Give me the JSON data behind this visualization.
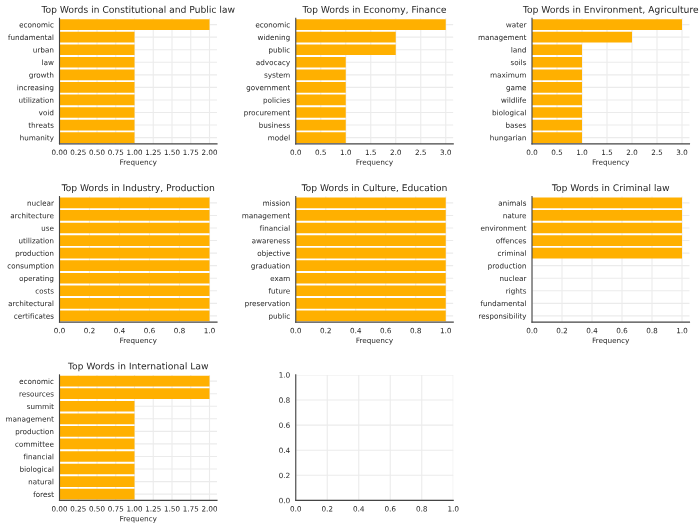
{
  "chart_data": [
    {
      "type": "bar",
      "orientation": "horizontal",
      "title": "Top Words in Constitutional and Public law",
      "xlabel": "Frequency",
      "categories": [
        "economic",
        "fundamental",
        "urban",
        "law",
        "growth",
        "increasing",
        "utilization",
        "void",
        "threats",
        "humanity"
      ],
      "values": [
        2,
        1,
        1,
        1,
        1,
        1,
        1,
        1,
        1,
        1
      ],
      "color": "#ffb000",
      "xlim": [
        0,
        2.1
      ],
      "xticks": [
        {
          "value": 0,
          "label": "0.00"
        },
        {
          "value": 0.25,
          "label": "0.25"
        },
        {
          "value": 0.5,
          "label": "0.50"
        },
        {
          "value": 0.75,
          "label": "0.75"
        },
        {
          "value": 1,
          "label": "1.00"
        },
        {
          "value": 1.25,
          "label": "1.25"
        },
        {
          "value": 1.5,
          "label": "1.50"
        },
        {
          "value": 1.75,
          "label": "1.75"
        },
        {
          "value": 2,
          "label": "2.00"
        }
      ],
      "grid": true
    },
    {
      "type": "bar",
      "orientation": "horizontal",
      "title": "Top Words in Economy, Finance",
      "xlabel": "Frequency",
      "categories": [
        "economic",
        "widening",
        "public",
        "advocacy",
        "system",
        "government",
        "policies",
        "procurement",
        "business",
        "model"
      ],
      "values": [
        3,
        2,
        2,
        1,
        1,
        1,
        1,
        1,
        1,
        1
      ],
      "color": "#ffb000",
      "xlim": [
        0,
        3.15
      ],
      "xticks": [
        {
          "value": 0,
          "label": "0.0"
        },
        {
          "value": 0.5,
          "label": "0.5"
        },
        {
          "value": 1,
          "label": "1.0"
        },
        {
          "value": 1.5,
          "label": "1.5"
        },
        {
          "value": 2,
          "label": "2.0"
        },
        {
          "value": 2.5,
          "label": "2.5"
        },
        {
          "value": 3,
          "label": "3.0"
        }
      ],
      "grid": true
    },
    {
      "type": "bar",
      "orientation": "horizontal",
      "title": "Top Words in Environment, Agriculture",
      "xlabel": "Frequency",
      "categories": [
        "water",
        "management",
        "land",
        "soils",
        "maximum",
        "game",
        "wildlife",
        "biological",
        "bases",
        "hungarian"
      ],
      "values": [
        3,
        2,
        1,
        1,
        1,
        1,
        1,
        1,
        1,
        1
      ],
      "color": "#ffb000",
      "xlim": [
        0,
        3.15
      ],
      "xticks": [
        {
          "value": 0,
          "label": "0.0"
        },
        {
          "value": 0.5,
          "label": "0.5"
        },
        {
          "value": 1,
          "label": "1.0"
        },
        {
          "value": 1.5,
          "label": "1.5"
        },
        {
          "value": 2,
          "label": "2.0"
        },
        {
          "value": 2.5,
          "label": "2.5"
        },
        {
          "value": 3,
          "label": "3.0"
        }
      ],
      "grid": true
    },
    {
      "type": "bar",
      "orientation": "horizontal",
      "title": "Top Words in Industry, Production",
      "xlabel": "Frequency",
      "categories": [
        "nuclear",
        "architecture",
        "use",
        "utilization",
        "production",
        "consumption",
        "operating",
        "costs",
        "architectural",
        "certificates"
      ],
      "values": [
        1,
        1,
        1,
        1,
        1,
        1,
        1,
        1,
        1,
        1
      ],
      "color": "#ffb000",
      "xlim": [
        0,
        1.05
      ],
      "xticks": [
        {
          "value": 0,
          "label": "0.0"
        },
        {
          "value": 0.2,
          "label": "0.2"
        },
        {
          "value": 0.4,
          "label": "0.4"
        },
        {
          "value": 0.6,
          "label": "0.6"
        },
        {
          "value": 0.8,
          "label": "0.8"
        },
        {
          "value": 1,
          "label": "1.0"
        }
      ],
      "grid": true
    },
    {
      "type": "bar",
      "orientation": "horizontal",
      "title": "Top Words in Culture, Education",
      "xlabel": "Frequency",
      "categories": [
        "mission",
        "management",
        "financial",
        "awareness",
        "objective",
        "graduation",
        "exam",
        "future",
        "preservation",
        "public"
      ],
      "values": [
        1,
        1,
        1,
        1,
        1,
        1,
        1,
        1,
        1,
        1
      ],
      "color": "#ffb000",
      "xlim": [
        0,
        1.05
      ],
      "xticks": [
        {
          "value": 0,
          "label": "0.0"
        },
        {
          "value": 0.2,
          "label": "0.2"
        },
        {
          "value": 0.4,
          "label": "0.4"
        },
        {
          "value": 0.6,
          "label": "0.6"
        },
        {
          "value": 0.8,
          "label": "0.8"
        },
        {
          "value": 1,
          "label": "1.0"
        }
      ],
      "grid": true
    },
    {
      "type": "bar",
      "orientation": "horizontal",
      "title": "Top Words in Criminal law",
      "xlabel": "Frequency",
      "categories": [
        "animals",
        "nature",
        "environment",
        "offences",
        "criminal",
        "production",
        "nuclear",
        "rights",
        "fundamental",
        "responsibility"
      ],
      "values": [
        1,
        1,
        1,
        1,
        1,
        null,
        null,
        null,
        null,
        null
      ],
      "color": "#ffb000",
      "xlim": [
        0,
        1.05
      ],
      "xticks": [
        {
          "value": 0,
          "label": "0.0"
        },
        {
          "value": 0.2,
          "label": "0.2"
        },
        {
          "value": 0.4,
          "label": "0.4"
        },
        {
          "value": 0.6,
          "label": "0.6"
        },
        {
          "value": 0.8,
          "label": "0.8"
        },
        {
          "value": 1,
          "label": "1.0"
        }
      ],
      "grid": true
    },
    {
      "type": "bar",
      "orientation": "horizontal",
      "title": "Top Words in International Law",
      "xlabel": "Frequency",
      "categories": [
        "economic",
        "resources",
        "summit",
        "management",
        "production",
        "committee",
        "financial",
        "biological",
        "natural",
        "forest"
      ],
      "values": [
        2,
        2,
        1,
        1,
        1,
        1,
        1,
        1,
        1,
        1
      ],
      "color": "#ffb000",
      "xlim": [
        0,
        2.1
      ],
      "xticks": [
        {
          "value": 0,
          "label": "0.00"
        },
        {
          "value": 0.25,
          "label": "0.25"
        },
        {
          "value": 0.5,
          "label": "0.50"
        },
        {
          "value": 0.75,
          "label": "0.75"
        },
        {
          "value": 1,
          "label": "1.00"
        },
        {
          "value": 1.25,
          "label": "1.25"
        },
        {
          "value": 1.5,
          "label": "1.50"
        },
        {
          "value": 1.75,
          "label": "1.75"
        },
        {
          "value": 2,
          "label": "2.00"
        }
      ],
      "grid": true
    },
    {
      "type": "bar",
      "xlim": [
        0,
        1
      ],
      "ylim": [
        0,
        1
      ],
      "xticks": [
        {
          "value": 0,
          "label": "0.0"
        },
        {
          "value": 0.2,
          "label": "0.2"
        },
        {
          "value": 0.4,
          "label": "0.4"
        },
        {
          "value": 0.6,
          "label": "0.6"
        },
        {
          "value": 0.8,
          "label": "0.8"
        },
        {
          "value": 1,
          "label": "1.0"
        }
      ],
      "yticks": [
        {
          "value": 0,
          "label": "0.0"
        },
        {
          "value": 0.2,
          "label": "0.2"
        },
        {
          "value": 0.4,
          "label": "0.4"
        },
        {
          "value": 0.6,
          "label": "0.6"
        },
        {
          "value": 0.8,
          "label": "0.8"
        },
        {
          "value": 1,
          "label": "1.0"
        }
      ],
      "grid": true
    }
  ]
}
